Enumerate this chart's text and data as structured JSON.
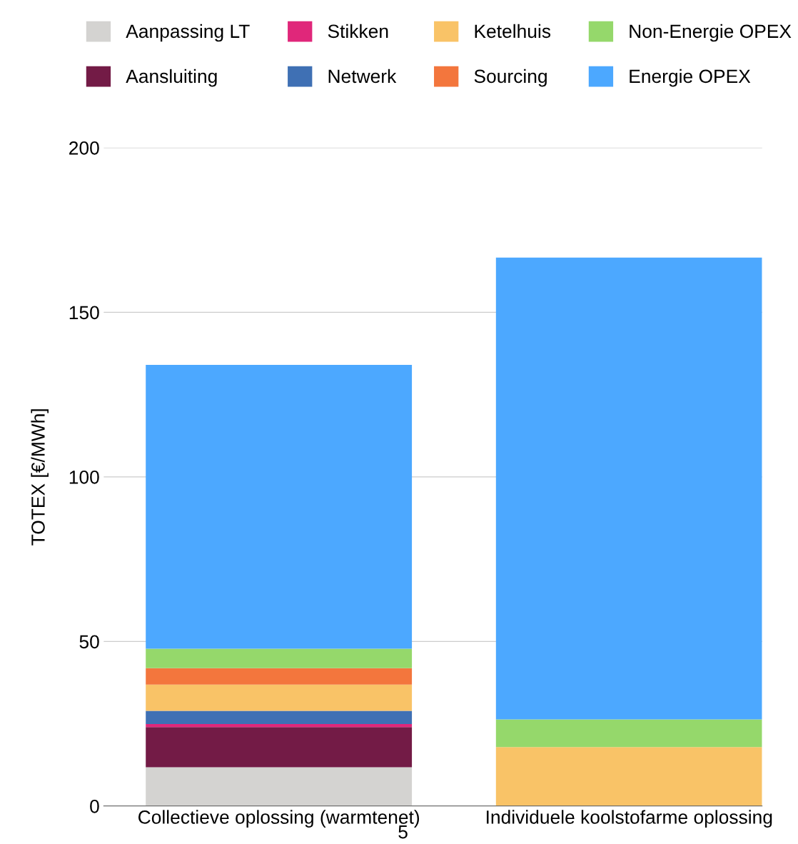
{
  "chart_data": {
    "type": "bar",
    "stacked": true,
    "ylabel": "TOTEX [€/MWh]",
    "categories": [
      "Collectieve oplossing (warmtenet)",
      "Individuele koolstofarme oplossing"
    ],
    "series": [
      {
        "name": "Aanpassing LT",
        "color": "#d4d3d1",
        "values": [
          11.8,
          0
        ]
      },
      {
        "name": "Aansluiting",
        "color": "#731b46",
        "values": [
          12.2,
          0
        ]
      },
      {
        "name": "Stikken",
        "color": "#e0277a",
        "values": [
          0.9,
          0
        ]
      },
      {
        "name": "Netwerk",
        "color": "#3f70b4",
        "values": [
          4.0,
          0
        ]
      },
      {
        "name": "Ketelhuis",
        "color": "#f9c367",
        "values": [
          8.0,
          17.9
        ]
      },
      {
        "name": "Sourcing",
        "color": "#f3763d",
        "values": [
          5.0,
          0
        ]
      },
      {
        "name": "Non-Energie OPEX",
        "color": "#95d86b",
        "values": [
          5.9,
          8.4
        ]
      },
      {
        "name": "Energie OPEX",
        "color": "#4ca8ff",
        "values": [
          86.2,
          140.3
        ]
      }
    ],
    "ylim": [
      0,
      200
    ],
    "yticks": [
      0,
      50,
      100,
      150,
      200
    ],
    "grid": "y",
    "legend": "top",
    "annotations": [
      "5"
    ]
  }
}
